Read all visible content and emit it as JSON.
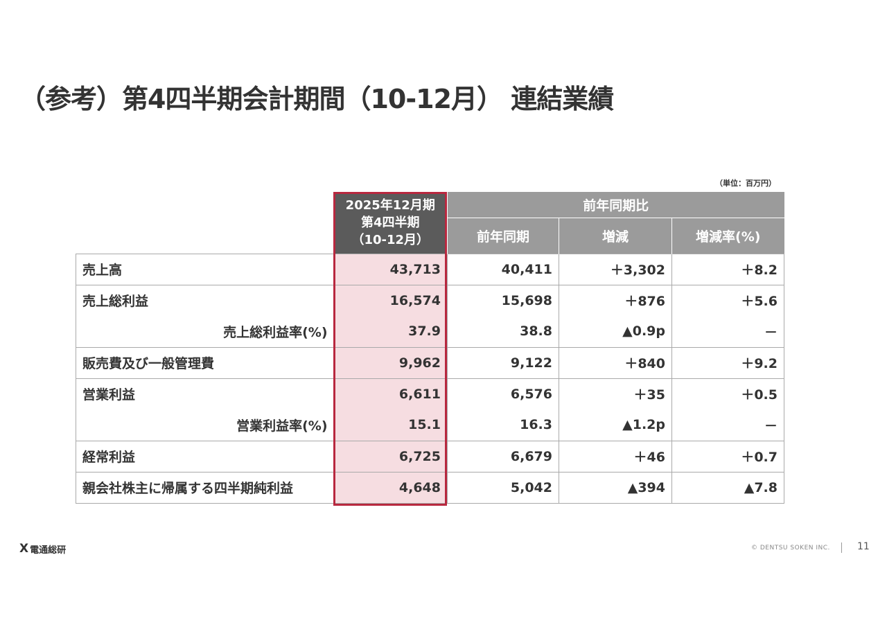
{
  "title": "（参考）第4四半期会計期間（10-12月） 連結業績",
  "unit": "（単位：百万円）",
  "header": {
    "current_line1": "2025年12月期",
    "current_line2": "第4四半期",
    "current_line3": "（10-12月）",
    "comparison": "前年同期比",
    "prev": "前年同期",
    "change": "増減",
    "rate": "増減率(%)"
  },
  "rows": [
    {
      "label": "売上高",
      "current": "43,713",
      "prev": "40,411",
      "change": "＋3,302",
      "rate": "＋8.2"
    },
    {
      "label": "売上総利益",
      "current": "16,574",
      "prev": "15,698",
      "change": "＋876",
      "rate": "＋5.6"
    },
    {
      "label": "売上総利益率(%)",
      "current": "37.9",
      "prev": "38.8",
      "change": "▲0.9p",
      "rate": "－"
    },
    {
      "label": "販売費及び一般管理費",
      "current": "9,962",
      "prev": "9,122",
      "change": "＋840",
      "rate": "＋9.2"
    },
    {
      "label": "営業利益",
      "current": "6,611",
      "prev": "6,576",
      "change": "＋35",
      "rate": "＋0.5"
    },
    {
      "label": "営業利益率(%)",
      "current": "15.1",
      "prev": "16.3",
      "change": "▲1.2p",
      "rate": "－"
    },
    {
      "label": "経常利益",
      "current": "6,725",
      "prev": "6,679",
      "change": "＋46",
      "rate": "＋0.7"
    },
    {
      "label": "親会社株主に帰属する四半期純利益",
      "current": "4,648",
      "prev": "5,042",
      "change": "▲394",
      "rate": "▲7.8"
    }
  ],
  "footer": {
    "logo_mark": "X",
    "logo_text": "電通総研",
    "copyright": "© DENTSU SOKEN INC.",
    "page": "11"
  },
  "colors": {
    "highlight_border": "#b8283f",
    "highlight_fill": "#f6dde1",
    "header_dark": "#5b5b5b",
    "header_gray": "#9b9b9b"
  }
}
